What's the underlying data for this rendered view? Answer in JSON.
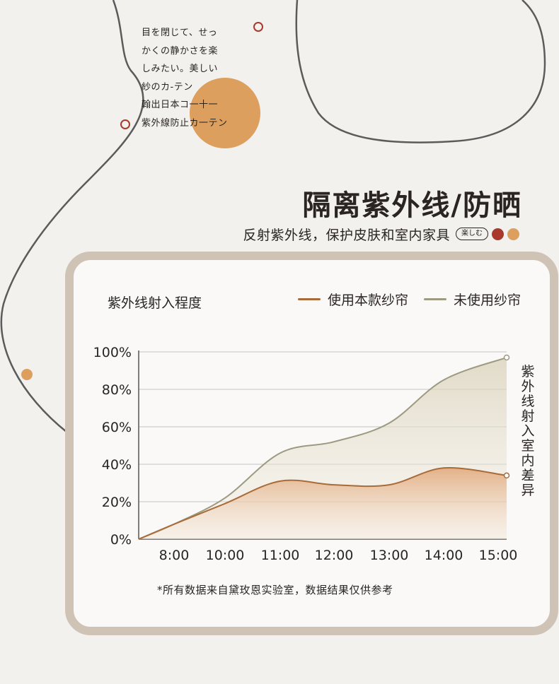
{
  "intro_lines": [
    "目を閉じて、せっ",
    "かくの静かさを楽",
    "しみたい。美しい",
    "紗のカ-テン",
    "翰出日本コ一十一",
    "紫外線防止カ一テン"
  ],
  "title": "隔离紫外线/防晒",
  "subtitle": "反射紫外线，保护皮肤和室内家具",
  "badge": "楽しむ",
  "colors": {
    "background": "#f3f1ee",
    "card_border": "#cfc3b5",
    "accent_orange": "#dd9f5d",
    "accent_red": "#a9392b",
    "series_with": "#a86b3a",
    "series_without": "#9c9a80"
  },
  "footnote": "*所有数据来自黛玫恩实验室，数据结果仅供参考",
  "side_label": "紫外线射入室内差异",
  "chart_data": {
    "type": "area",
    "title": "紫外线射入程度",
    "xlabel": "",
    "ylabel": "紫外线射入室内差异",
    "x": [
      "8:00",
      "10:00",
      "11:00",
      "12:00",
      "13:00",
      "14:00",
      "15:00"
    ],
    "ylim": [
      0,
      100
    ],
    "yticks": [
      "0%",
      "20%",
      "40%",
      "60%",
      "80%",
      "100%"
    ],
    "grid": true,
    "legend_position": "top-right",
    "series": [
      {
        "name": "使用本款纱帘",
        "color": "#a86b3a",
        "values": [
          8,
          19,
          31,
          29,
          29,
          38,
          34
        ]
      },
      {
        "name": "未使用纱帘",
        "color": "#9c9a80",
        "values": [
          8,
          22,
          46,
          52,
          62,
          85,
          97
        ]
      }
    ]
  }
}
